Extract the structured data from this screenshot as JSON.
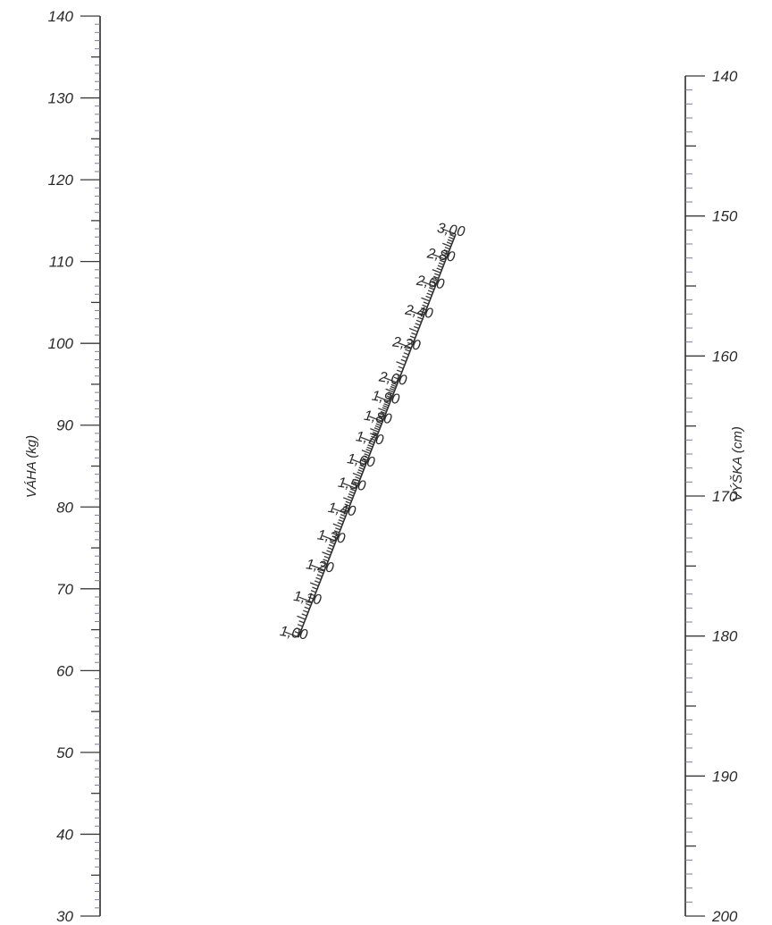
{
  "weight_scale": {
    "title": "VÁHA (kg)",
    "labels": [
      "140",
      "130",
      "120",
      "110",
      "100",
      "90",
      "80",
      "70",
      "60",
      "50",
      "40",
      "30"
    ],
    "min": 30,
    "max": 140,
    "major_step": 10,
    "minor_step": 1
  },
  "height_scale": {
    "title": "VÝŠKA (cm)",
    "labels": [
      "140",
      "150",
      "160",
      "170",
      "180",
      "190",
      "200"
    ],
    "min": 140,
    "max": 200,
    "major_step": 10,
    "minor_step": 1
  },
  "bsa_scale": {
    "labels": [
      "3,00",
      "2,80",
      "2,60",
      "2,40",
      "2,20",
      "2,00",
      "1,90",
      "1,80",
      "1,70",
      "1,60",
      "1,50",
      "1,40",
      "1,30",
      "1,20",
      "1,10",
      "1,00"
    ],
    "min": 1.0,
    "max": 3.0
  }
}
